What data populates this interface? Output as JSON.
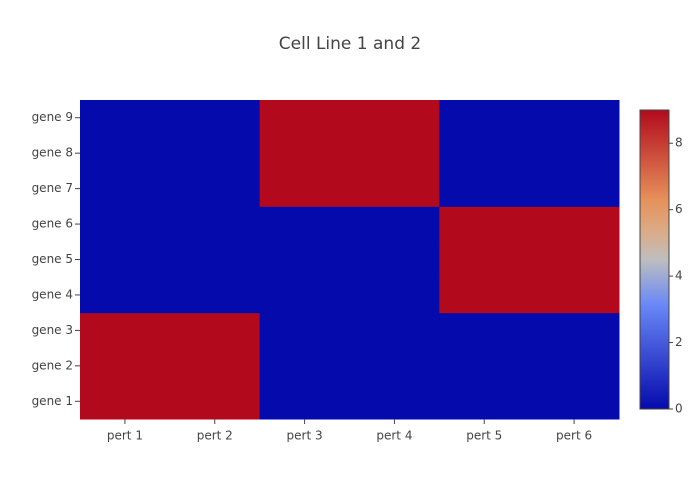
{
  "chart_data": {
    "type": "heatmap",
    "title": "Cell Line 1 and 2",
    "x": [
      "pert 1",
      "pert 2",
      "pert 3",
      "pert 4",
      "pert 5",
      "pert 6"
    ],
    "y": [
      "gene 1",
      "gene 2",
      "gene 3",
      "gene 4",
      "gene 5",
      "gene 6",
      "gene 7",
      "gene 8",
      "gene 9"
    ],
    "z": [
      [
        9,
        9,
        0,
        0,
        0,
        0
      ],
      [
        9,
        9,
        0,
        0,
        0,
        0
      ],
      [
        9,
        9,
        0,
        0,
        0,
        0
      ],
      [
        0,
        0,
        0,
        0,
        9,
        9
      ],
      [
        0,
        0,
        0,
        0,
        9,
        9
      ],
      [
        0,
        0,
        0,
        0,
        9,
        9
      ],
      [
        0,
        0,
        9,
        9,
        0,
        0
      ],
      [
        0,
        0,
        9,
        9,
        0,
        0
      ],
      [
        0,
        0,
        9,
        9,
        0,
        0
      ]
    ],
    "zlim": [
      0,
      9
    ],
    "zticks": [
      0,
      2,
      4,
      6,
      8
    ],
    "colorscale": [
      [
        0,
        "#050aac"
      ],
      [
        0.35,
        "#6a89f7"
      ],
      [
        0.5,
        "#bebebe"
      ],
      [
        0.6,
        "#dcaa84"
      ],
      [
        0.7,
        "#e6915a"
      ],
      [
        1,
        "#b20a1c"
      ]
    ]
  }
}
